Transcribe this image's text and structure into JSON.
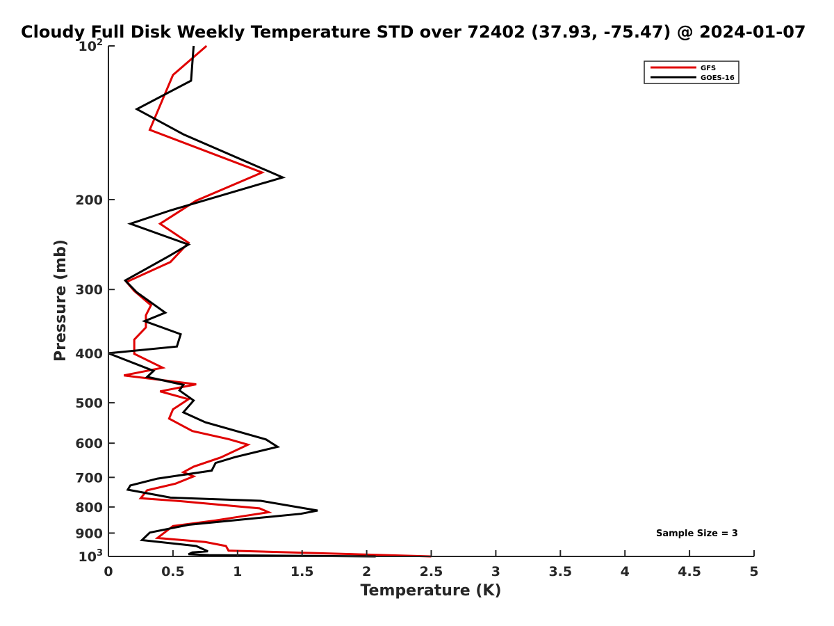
{
  "chart_data": {
    "type": "line",
    "title": "Cloudy Full Disk Weekly Temperature STD over 72402 (37.93, -75.47) @ 2024-01-07",
    "xlabel": "Temperature (K)",
    "ylabel": "Pressure (mb)",
    "xlim": [
      0,
      5
    ],
    "ylim": [
      100,
      1000
    ],
    "yscale": "log",
    "y_reversed": true,
    "grid": false,
    "legend_position": "top-right",
    "x_ticks": [
      0,
      0.5,
      1,
      1.5,
      2,
      2.5,
      3,
      3.5,
      4,
      4.5,
      5
    ],
    "x_tick_labels": [
      "0",
      "0.5",
      "1",
      "1.5",
      "2",
      "2.5",
      "3",
      "3.5",
      "4",
      "4.5",
      "5"
    ],
    "y_ticks": [
      100,
      200,
      300,
      400,
      500,
      600,
      700,
      800,
      900,
      1000
    ],
    "y_tick_labels": [
      {
        "base": "10",
        "exp": "2"
      },
      {
        "base": "200",
        "exp": ""
      },
      {
        "base": "300",
        "exp": ""
      },
      {
        "base": "400",
        "exp": ""
      },
      {
        "base": "500",
        "exp": ""
      },
      {
        "base": "600",
        "exp": ""
      },
      {
        "base": "700",
        "exp": ""
      },
      {
        "base": "800",
        "exp": ""
      },
      {
        "base": "900",
        "exp": ""
      },
      {
        "base": "10",
        "exp": "3"
      }
    ],
    "annotation": "Sample Size = 3",
    "series": [
      {
        "name": "GFS",
        "color": "#e00000",
        "points": [
          [
            0.76,
            100
          ],
          [
            0.5,
            114
          ],
          [
            0.32,
            146
          ],
          [
            1.19,
            177
          ],
          [
            0.68,
            201
          ],
          [
            0.4,
            223
          ],
          [
            0.62,
            243
          ],
          [
            0.48,
            265
          ],
          [
            0.14,
            290
          ],
          [
            0.2,
            302
          ],
          [
            0.33,
            322
          ],
          [
            0.29,
            337
          ],
          [
            0.29,
            356
          ],
          [
            0.2,
            376
          ],
          [
            0.2,
            401
          ],
          [
            0.42,
            427
          ],
          [
            0.12,
            442
          ],
          [
            0.68,
            460
          ],
          [
            0.4,
            475
          ],
          [
            0.62,
            492
          ],
          [
            0.5,
            515
          ],
          [
            0.47,
            537
          ],
          [
            0.65,
            568
          ],
          [
            0.93,
            589
          ],
          [
            1.08,
            604
          ],
          [
            0.87,
            640
          ],
          [
            0.66,
            667
          ],
          [
            0.58,
            684
          ],
          [
            0.66,
            697
          ],
          [
            0.52,
            720
          ],
          [
            0.3,
            742
          ],
          [
            0.25,
            769
          ],
          [
            0.55,
            779
          ],
          [
            1.17,
            805
          ],
          [
            1.24,
            819
          ],
          [
            0.83,
            850
          ],
          [
            0.5,
            872
          ],
          [
            0.38,
            920
          ],
          [
            0.75,
            937
          ],
          [
            0.91,
            954
          ],
          [
            0.93,
            974
          ],
          [
            2.5,
            1000
          ]
        ]
      },
      {
        "name": "GOES-16",
        "color": "#000000",
        "points": [
          [
            0.66,
            100
          ],
          [
            0.64,
            117
          ],
          [
            0.22,
            133
          ],
          [
            0.58,
            149
          ],
          [
            1.35,
            181
          ],
          [
            0.48,
            210
          ],
          [
            0.17,
            223
          ],
          [
            0.62,
            245
          ],
          [
            0.47,
            258
          ],
          [
            0.13,
            288
          ],
          [
            0.22,
            304
          ],
          [
            0.44,
            333
          ],
          [
            0.28,
            346
          ],
          [
            0.56,
            367
          ],
          [
            0.53,
            388
          ],
          [
            0.0,
            400
          ],
          [
            0.35,
            433
          ],
          [
            0.3,
            445
          ],
          [
            0.58,
            461
          ],
          [
            0.55,
            473
          ],
          [
            0.66,
            495
          ],
          [
            0.58,
            522
          ],
          [
            0.75,
            546
          ],
          [
            1.22,
            590
          ],
          [
            1.31,
            610
          ],
          [
            0.98,
            639
          ],
          [
            0.83,
            656
          ],
          [
            0.8,
            679
          ],
          [
            0.38,
            704
          ],
          [
            0.17,
            726
          ],
          [
            0.15,
            740
          ],
          [
            0.48,
            767
          ],
          [
            1.18,
            778
          ],
          [
            1.62,
            813
          ],
          [
            1.49,
            825
          ],
          [
            0.62,
            867
          ],
          [
            0.32,
            898
          ],
          [
            0.26,
            929
          ],
          [
            0.68,
            954
          ],
          [
            0.77,
            977
          ],
          [
            0.65,
            982
          ],
          [
            0.62,
            990
          ],
          [
            0.78,
            994
          ],
          [
            2.07,
            1000
          ]
        ]
      }
    ]
  }
}
